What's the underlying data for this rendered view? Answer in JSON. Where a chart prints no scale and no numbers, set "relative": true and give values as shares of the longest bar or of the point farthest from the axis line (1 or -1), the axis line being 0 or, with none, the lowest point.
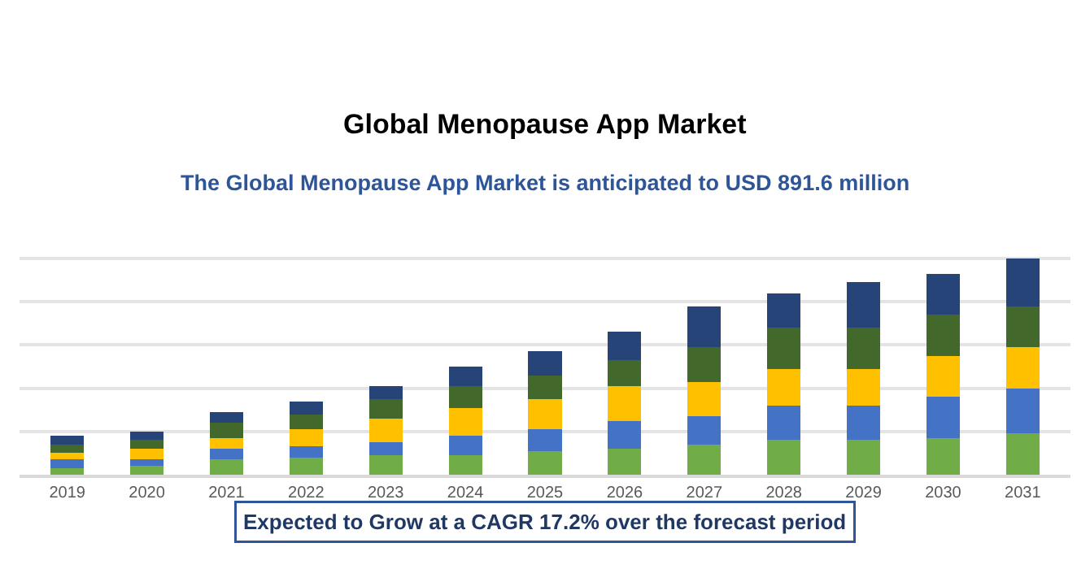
{
  "chart_data": {
    "type": "bar",
    "title": "Global Menopause App Market",
    "subtitle": "The Global Menopause App Market is anticipated to USD 891.6 million",
    "annotations": [
      "Expected to Grow at a CAGR 17.2% over the forecast period"
    ],
    "categories": [
      "2019",
      "2020",
      "2021",
      "2022",
      "2023",
      "2024",
      "2025",
      "2026",
      "2027",
      "2028",
      "2029",
      "2030",
      "2031"
    ],
    "stacked": true,
    "relative": true,
    "grid": "y",
    "tick_labels": "x",
    "series": [
      {
        "color": "#70ad47",
        "values": [
          0.03,
          0.04,
          0.07,
          0.08,
          0.09,
          0.09,
          0.11,
          0.12,
          0.14,
          0.16,
          0.16,
          0.17,
          0.19
        ]
      },
      {
        "color": "#4472c4",
        "values": [
          0.04,
          0.03,
          0.05,
          0.05,
          0.06,
          0.09,
          0.1,
          0.13,
          0.13,
          0.16,
          0.16,
          0.19,
          0.21
        ]
      },
      {
        "color": "#ffc000",
        "values": [
          0.03,
          0.05,
          0.05,
          0.08,
          0.11,
          0.13,
          0.14,
          0.16,
          0.16,
          0.17,
          0.17,
          0.19,
          0.19
        ]
      },
      {
        "color": "#43682b",
        "values": [
          0.04,
          0.04,
          0.07,
          0.07,
          0.09,
          0.1,
          0.11,
          0.12,
          0.16,
          0.19,
          0.19,
          0.19,
          0.19
        ]
      },
      {
        "color": "#264478",
        "values": [
          0.04,
          0.04,
          0.05,
          0.06,
          0.06,
          0.09,
          0.11,
          0.13,
          0.19,
          0.16,
          0.21,
          0.19,
          0.22
        ]
      }
    ]
  }
}
